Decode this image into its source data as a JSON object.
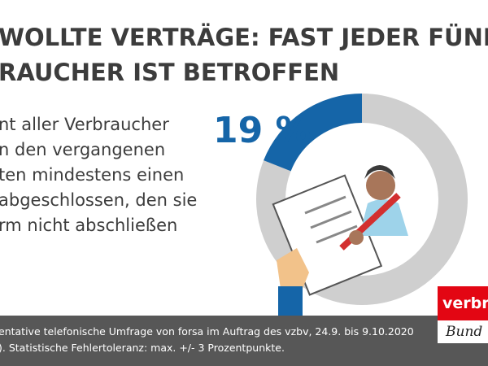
{
  "chart_data": {
    "type": "donut",
    "title": [
      "WOLLTE VERTRÄGE: FAST JEDER FÜNFTE",
      "RAUCHER IST BETROFFEN"
    ],
    "text": [
      "nt aller Verbraucher",
      "n den vergangenen",
      "ten mindestens einen",
      "abgeschlossen, den sie",
      "rm nicht abschließen"
    ],
    "values": [
      19
    ],
    "value_labels": [
      "19 %"
    ],
    "color": "#1565a8",
    "track_color": "#cfcfcf",
    "footnote": [
      "entative telefonische Umfrage von forsa im Auftrag des vzbv, 24.9. bis 9.10.2020",
      "). Statistische Fehlertoleranz: max. +/- 3 Prozentpunkte."
    ],
    "logo": [
      "verbra",
      "Bund"
    ]
  }
}
